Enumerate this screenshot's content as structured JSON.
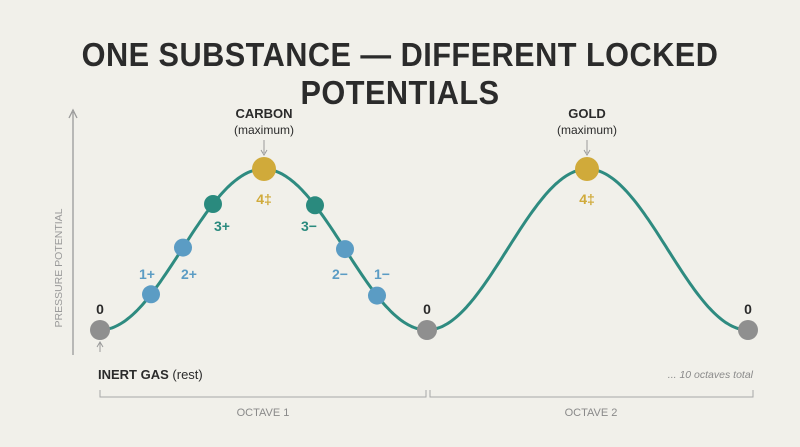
{
  "title": "ONE SUBSTANCE — DIFFERENT LOCKED POTENTIALS",
  "y_axis_label": "PRESSURE POTENTIAL",
  "colors": {
    "curve": "#2e8b80",
    "zero": "#8f8f8f",
    "light": "#5b9cc4",
    "teal": "#2a8a7e",
    "gold": "#d0aa3a",
    "text": "#2b2b2b",
    "axis": "#9a9a9a"
  },
  "peaks": [
    {
      "name": "CARBON",
      "sub": "(maximum)"
    },
    {
      "name": "GOLD",
      "sub": "(maximum)"
    }
  ],
  "points": [
    {
      "label": "0",
      "kind": "zero"
    },
    {
      "label": "1+",
      "kind": "light"
    },
    {
      "label": "2+",
      "kind": "light"
    },
    {
      "label": "3+",
      "kind": "teal"
    },
    {
      "label": "4‡",
      "kind": "gold"
    },
    {
      "label": "3−",
      "kind": "teal"
    },
    {
      "label": "2−",
      "kind": "light"
    },
    {
      "label": "1−",
      "kind": "light"
    },
    {
      "label": "0",
      "kind": "zero"
    },
    {
      "label": "4‡",
      "kind": "gold"
    },
    {
      "label": "0",
      "kind": "zero"
    }
  ],
  "rest_label": {
    "bold": "INERT GAS",
    "normal": " (rest)"
  },
  "footnote": "... 10 octaves total",
  "octaves": [
    "OCTAVE 1",
    "OCTAVE 2"
  ]
}
